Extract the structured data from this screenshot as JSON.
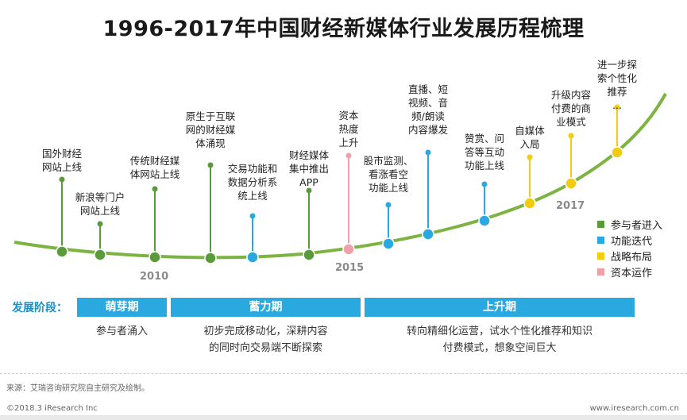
{
  "title": "1996-2017年中国财经新媒体行业发展历程梳理",
  "colors": {
    "curve": "#7cb342",
    "participant": "#5a9a3c",
    "function": "#29a9df",
    "strategy": "#f2cc10",
    "capital": "#f0a0a8"
  },
  "years": [
    "2010",
    "2015",
    "2017"
  ],
  "milestones": [
    {
      "type": "participant",
      "lines": [
        "国外财经",
        "网站上线"
      ]
    },
    {
      "type": "participant",
      "lines": [
        "新浪等门户",
        "网站上线"
      ]
    },
    {
      "type": "participant",
      "lines": [
        "传统财经媒",
        "体网站上线"
      ]
    },
    {
      "type": "participant",
      "lines": [
        "原生于互联",
        "网的财经媒",
        "体涌现"
      ]
    },
    {
      "type": "function",
      "lines": [
        "交易功能和",
        "数据分析系",
        "统上线"
      ]
    },
    {
      "type": "participant",
      "lines": [
        "财经媒体",
        "集中推出",
        "APP"
      ]
    },
    {
      "type": "capital",
      "lines": [
        "资本",
        "热度",
        "上升"
      ]
    },
    {
      "type": "function",
      "lines": [
        "股市监测、",
        "看涨看空",
        "功能上线"
      ]
    },
    {
      "type": "function",
      "lines": [
        "直播、短",
        "视频、音",
        "频/朗读",
        "内容爆发"
      ]
    },
    {
      "type": "function",
      "lines": [
        "赞赏、问",
        "答等互动",
        "功能上线"
      ]
    },
    {
      "type": "strategy",
      "lines": [
        "自媒体",
        "入局"
      ]
    },
    {
      "type": "strategy",
      "lines": [
        "升级内容",
        "付费的商",
        "业模式"
      ]
    },
    {
      "type": "strategy",
      "lines": [
        "进一步探",
        "索个性化",
        "推荐",
        "..."
      ]
    }
  ],
  "legend": [
    {
      "type": "participant",
      "label": "参与者进入"
    },
    {
      "type": "function",
      "label": "功能迭代"
    },
    {
      "type": "strategy",
      "label": "战略布局"
    },
    {
      "type": "capital",
      "label": "资本运作"
    }
  ],
  "stage_label": "发展阶段：",
  "stages": [
    {
      "name": "萌芽期",
      "desc": [
        "参与者涌入"
      ]
    },
    {
      "name": "蓄力期",
      "desc": [
        "初步完成移动化，深耕内容",
        "的同时向交易端不断探索"
      ]
    },
    {
      "name": "上升期",
      "desc": [
        "转向精细化运营，试水个性化推荐和知识",
        "付费模式，想象空间巨大"
      ]
    }
  ],
  "source": "来源：艾瑞咨询研究院自主研究及绘制。",
  "copyright": "©2018.3 iResearch Inc",
  "website": "www.iresearch.com.cn"
}
